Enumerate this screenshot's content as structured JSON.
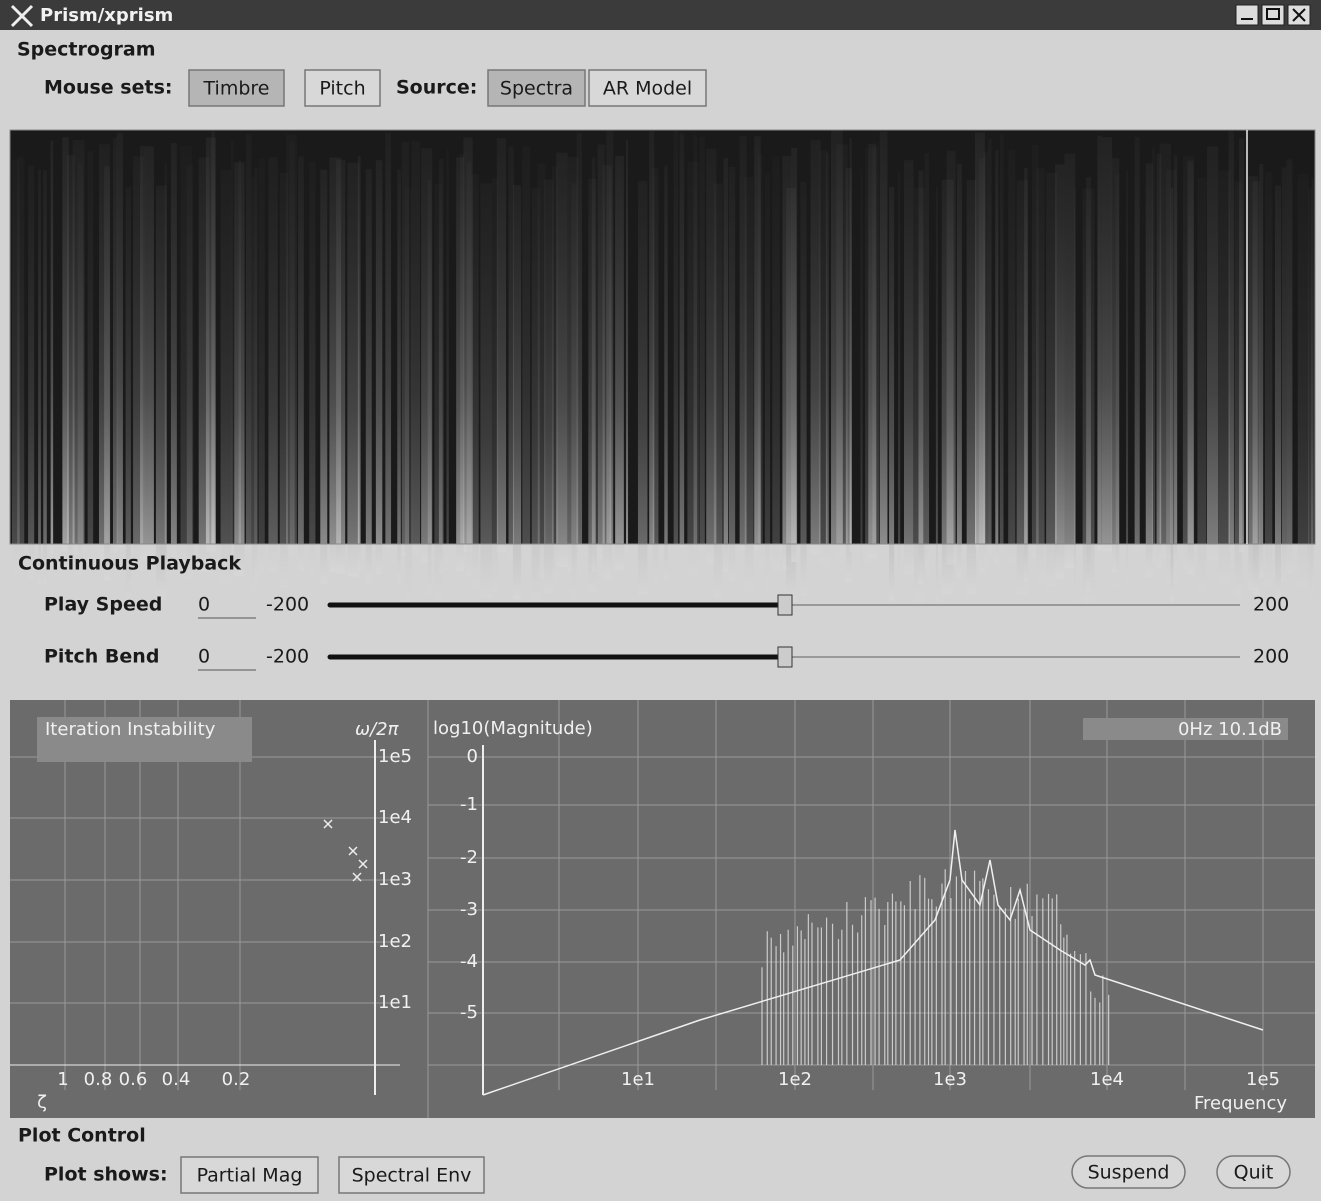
{
  "window": {
    "title": "Prism/xprism"
  },
  "spectrogram": {
    "heading": "Spectrogram",
    "mouse_sets_label": "Mouse sets:",
    "mouse_sets": [
      "Timbre",
      "Pitch"
    ],
    "source_label": "Source:",
    "sources": [
      "Spectra",
      "AR Model"
    ]
  },
  "playback": {
    "heading": "Continuous Playback",
    "sliders": [
      {
        "label": "Play Speed",
        "value": 0,
        "min": -200,
        "max": 200
      },
      {
        "label": "Pitch Bend",
        "value": 0,
        "min": -200,
        "max": 200
      }
    ]
  },
  "plot": {
    "stability_title": "Iteration Instability",
    "omega_label": "ω/2π",
    "omega_ticks": [
      "1e5",
      "1e4",
      "1e3",
      "1e2",
      "1e1"
    ],
    "zeta_ticks": [
      "1",
      "0.8",
      "0.6",
      "0.4",
      "0.2"
    ],
    "zeta_label": "ζ",
    "magnitude_label": "log10(Magnitude)",
    "magnitude_ticks": [
      0,
      -1,
      -2,
      -3,
      -4,
      -5
    ],
    "frequency_ticks": [
      "1e1",
      "1e2",
      "1e3",
      "1e4",
      "1e5"
    ],
    "frequency_label": "Frequency",
    "readout": "0Hz  10.1dB"
  },
  "plot_control": {
    "heading": "Plot Control",
    "plot_shows_label": "Plot shows:",
    "options": [
      "Partial Mag",
      "Spectral Env"
    ],
    "actions": [
      "Suspend",
      "Quit"
    ]
  }
}
